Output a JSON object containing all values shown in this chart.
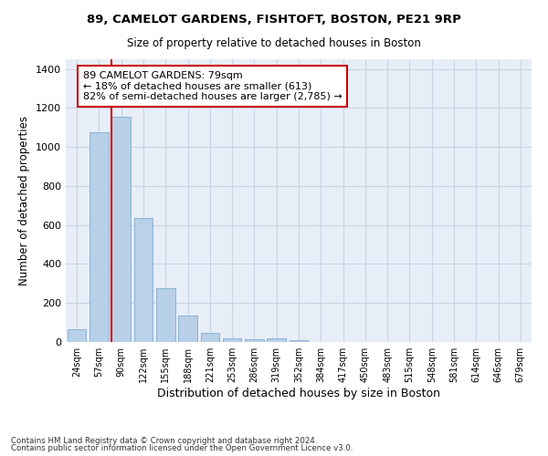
{
  "title": "89, CAMELOT GARDENS, FISHTOFT, BOSTON, PE21 9RP",
  "subtitle": "Size of property relative to detached houses in Boston",
  "xlabel": "Distribution of detached houses by size in Boston",
  "ylabel": "Number of detached properties",
  "bar_values": [
    65,
    1075,
    1155,
    635,
    275,
    135,
    45,
    20,
    15,
    17,
    10,
    0,
    0,
    0,
    0,
    0,
    0,
    0,
    0,
    0,
    0
  ],
  "bar_labels": [
    "24sqm",
    "57sqm",
    "90sqm",
    "122sqm",
    "155sqm",
    "188sqm",
    "221sqm",
    "253sqm",
    "286sqm",
    "319sqm",
    "352sqm",
    "384sqm",
    "417sqm",
    "450sqm",
    "483sqm",
    "515sqm",
    "548sqm",
    "581sqm",
    "614sqm",
    "646sqm",
    "679sqm"
  ],
  "bar_color": "#b8d0e8",
  "bar_edge_color": "#8ab4d4",
  "ylim": [
    0,
    1450
  ],
  "yticks": [
    0,
    200,
    400,
    600,
    800,
    1000,
    1200,
    1400
  ],
  "property_line_index": 2,
  "annotation_title": "89 CAMELOT GARDENS: 79sqm",
  "annotation_line1": "← 18% of detached houses are smaller (613)",
  "annotation_line2": "82% of semi-detached houses are larger (2,785) →",
  "annotation_color": "#cc0000",
  "grid_color": "#c8d4e4",
  "background_color": "#e8eef8",
  "footnote1": "Contains HM Land Registry data © Crown copyright and database right 2024.",
  "footnote2": "Contains public sector information licensed under the Open Government Licence v3.0."
}
